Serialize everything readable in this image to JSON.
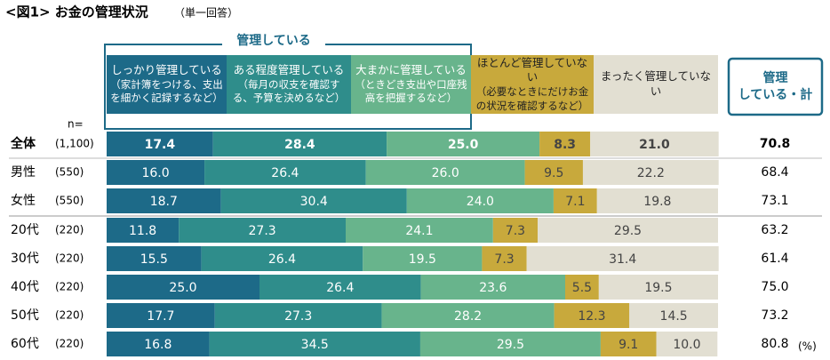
{
  "chart_data": {
    "type": "stacked-bar",
    "title": "<図1> お金の管理状況",
    "subtitle": "（単一回答）",
    "group_label": "管理している",
    "n_label": "n=",
    "unit": "(%)",
    "categories": [
      "全体",
      "男性",
      "女性",
      "20代",
      "30代",
      "40代",
      "50代",
      "60代"
    ],
    "n": [
      "(1,100)",
      "(550)",
      "(550)",
      "(220)",
      "(220)",
      "(220)",
      "(220)",
      "(220)"
    ],
    "xlim": [
      0,
      100
    ],
    "series": [
      {
        "name": "しっかり管理している",
        "note": "（家計簿をつける、支出を細かく記録するなど）",
        "color": "#1d6a88",
        "values": [
          17.4,
          16.0,
          18.7,
          11.8,
          15.5,
          25.0,
          17.7,
          16.8
        ],
        "value_labels": [
          "17.4",
          "16.0",
          "18.7",
          "11.8",
          "15.5",
          "25.0",
          "17.7",
          "16.8"
        ]
      },
      {
        "name": "ある程度管理している",
        "note": "（毎月の収支を確認する、予算を決めるなど）",
        "color": "#2f8d8b",
        "values": [
          28.4,
          26.4,
          30.4,
          27.3,
          26.4,
          26.4,
          27.3,
          34.5
        ],
        "value_labels": [
          "28.4",
          "26.4",
          "30.4",
          "27.3",
          "26.4",
          "26.4",
          "27.3",
          "34.5"
        ]
      },
      {
        "name": "大まかに管理している",
        "note": "（ときどき支出や口座残高を把握するなど）",
        "color": "#68b48c",
        "values": [
          25.0,
          26.0,
          24.0,
          24.1,
          19.5,
          23.6,
          28.2,
          29.5
        ],
        "value_labels": [
          "25.0",
          "26.0",
          "24.0",
          "24.1",
          "19.5",
          "23.6",
          "28.2",
          "29.5"
        ]
      },
      {
        "name": "ほとんど管理していない",
        "note": "（必要なときにだけお金の状況を確認するなど）",
        "color": "#c8a93c",
        "values": [
          8.3,
          9.5,
          7.1,
          7.3,
          7.3,
          5.5,
          12.3,
          9.1
        ],
        "value_labels": [
          "8.3",
          "9.5",
          "7.1",
          "7.3",
          "7.3",
          "5.5",
          "12.3",
          "9.1"
        ]
      },
      {
        "name": "まったく管理していない",
        "color": "#e2dfd2",
        "values": [
          21.0,
          22.2,
          19.8,
          29.5,
          31.4,
          19.5,
          14.5,
          10.0
        ],
        "value_labels": [
          "21.0",
          "22.2",
          "19.8",
          "29.5",
          "31.4",
          "19.5",
          "14.5",
          "10.0"
        ]
      }
    ],
    "total": {
      "label_lines": [
        "管理",
        "している・計"
      ],
      "values": [
        70.8,
        68.4,
        73.1,
        63.2,
        61.4,
        75.0,
        73.2,
        80.8
      ],
      "value_labels": [
        "70.8",
        "68.4",
        "73.1",
        "63.2",
        "61.4",
        "75.0",
        "73.2",
        "80.8"
      ]
    }
  }
}
